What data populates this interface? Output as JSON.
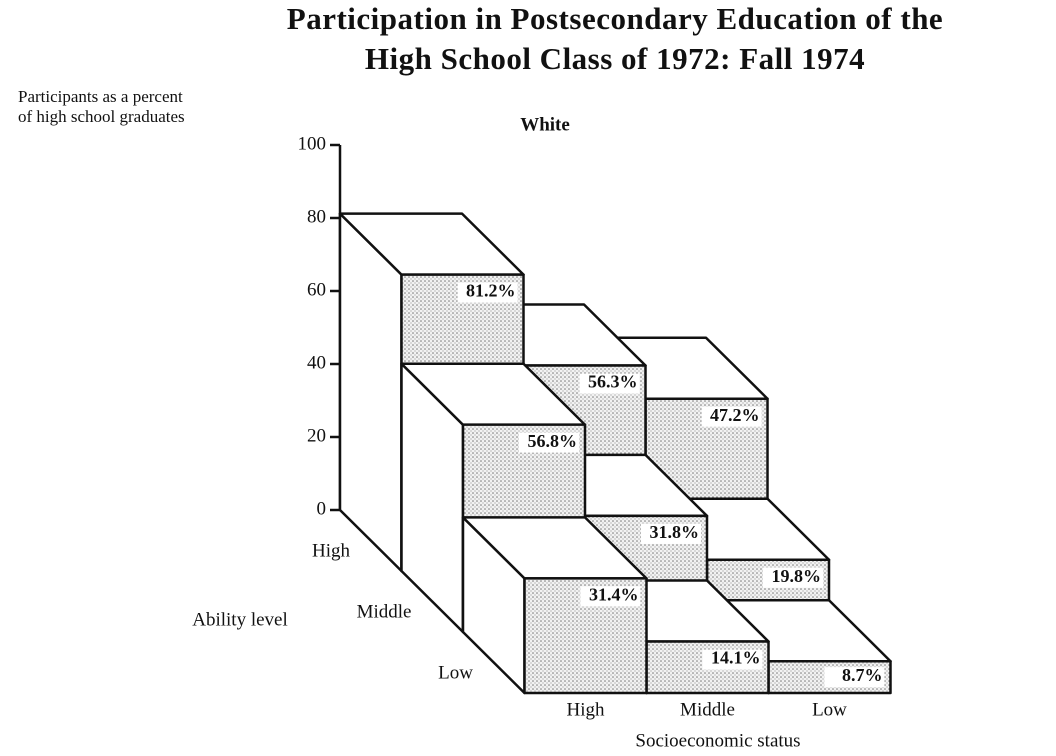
{
  "chart_data": {
    "type": "bar3d",
    "title": [
      "Participation in Postsecondary Education of the",
      "High School Class of 1972:  Fall 1974"
    ],
    "subtitle": "White",
    "y_label": [
      "Participants as a percent",
      "of high school graduates"
    ],
    "x_label": "Socioeconomic status",
    "depth_label": "Ability level",
    "categories": [
      "High",
      "Middle",
      "Low"
    ],
    "ylim": [
      0,
      100
    ],
    "yticks": [
      0,
      20,
      40,
      60,
      80,
      100
    ],
    "series": [
      {
        "name": "High",
        "values": [
          81.2,
          56.3,
          47.2
        ],
        "value_labels": [
          "81.2%",
          "56.3%",
          "47.2%"
        ]
      },
      {
        "name": "Middle",
        "values": [
          56.8,
          31.8,
          19.8
        ],
        "value_labels": [
          "56.8%",
          "31.8%",
          "19.8%"
        ]
      },
      {
        "name": "Low",
        "values": [
          31.4,
          14.1,
          8.7
        ],
        "value_labels": [
          "31.4%",
          "14.1%",
          "8.7%"
        ]
      }
    ]
  }
}
